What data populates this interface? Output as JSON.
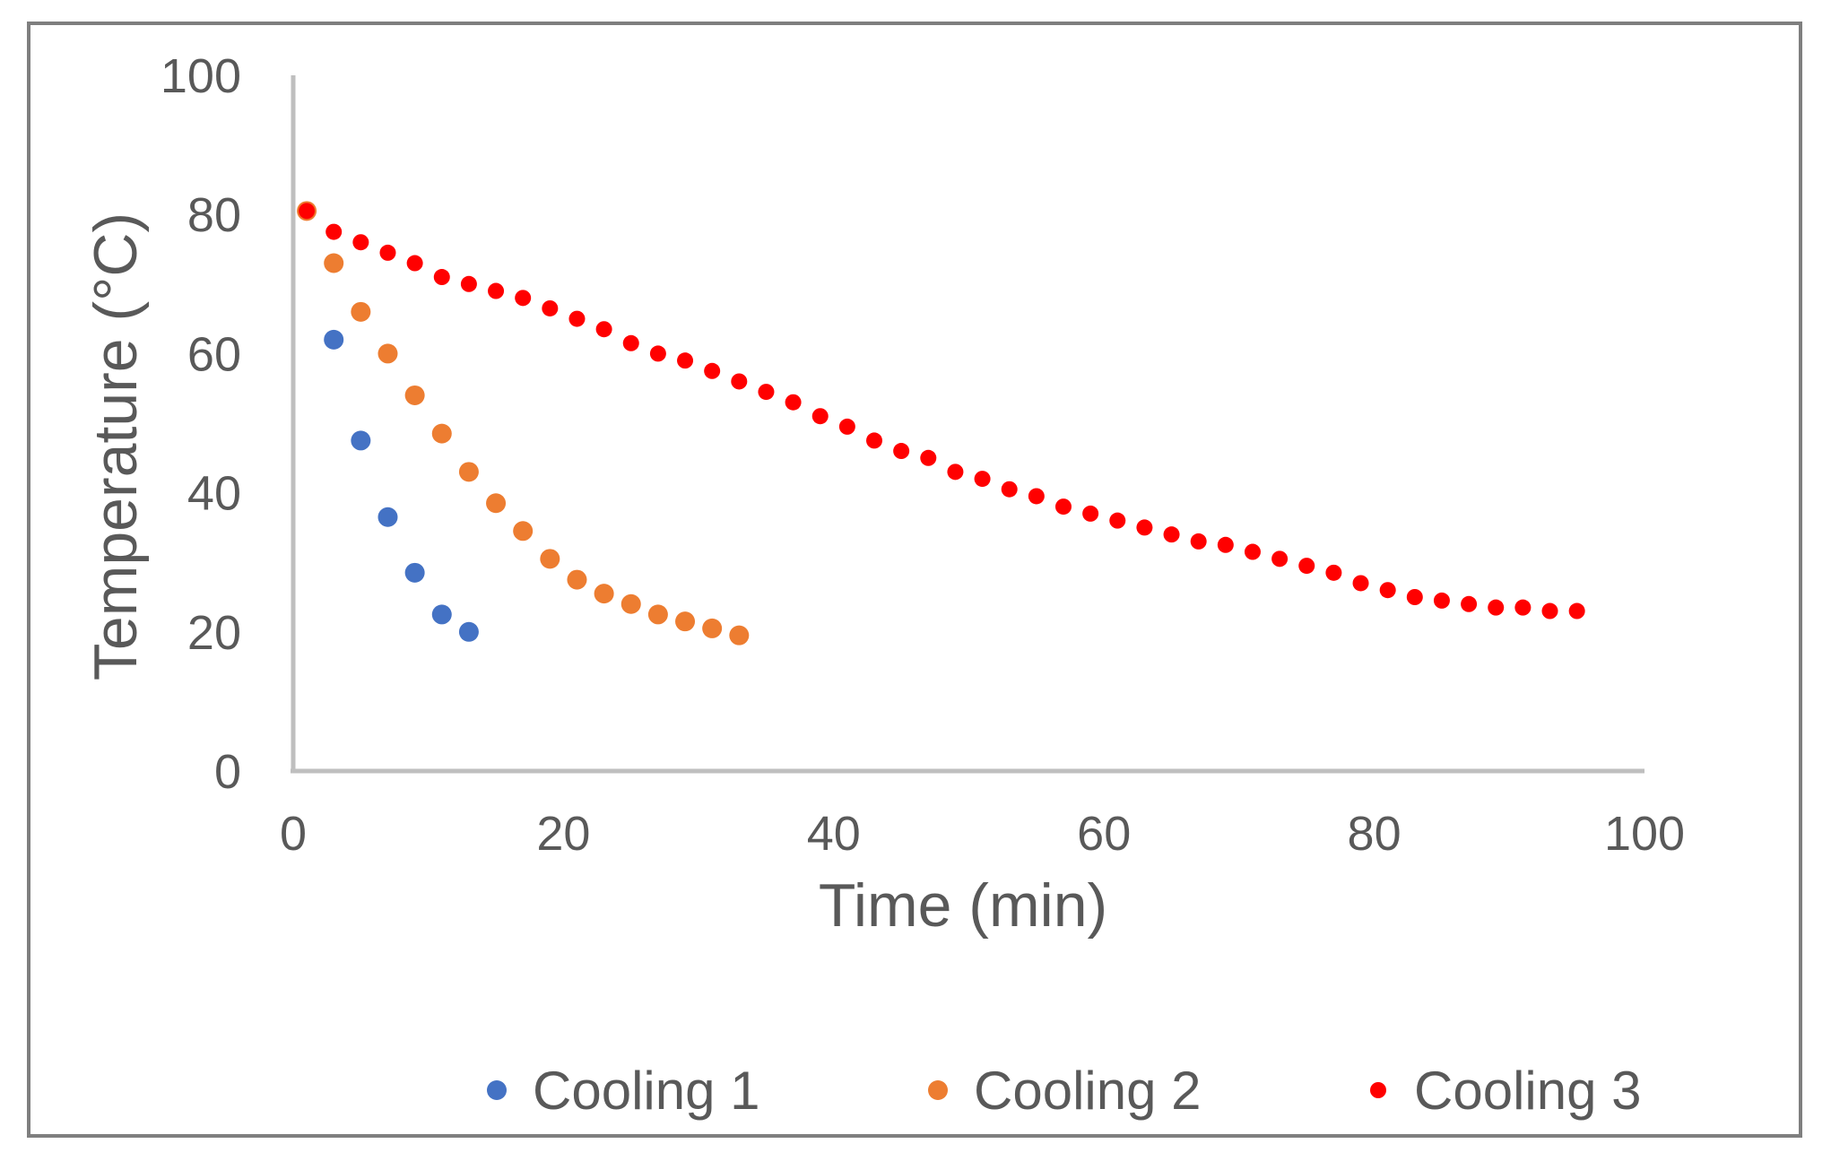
{
  "chart_data": {
    "type": "scatter",
    "title": "",
    "xlabel": "Time (min)",
    "ylabel": "Temperature (°C)",
    "xlim": [
      0,
      100
    ],
    "ylim": [
      0,
      100
    ],
    "x_ticks": [
      "0",
      "20",
      "40",
      "60",
      "80",
      "100"
    ],
    "y_ticks": [
      "0",
      "20",
      "40",
      "60",
      "80",
      "100"
    ],
    "grid": false,
    "legend_position": "bottom",
    "series": [
      {
        "name": "Cooling 1",
        "color": "#4472c4",
        "x": [
          3,
          5,
          7,
          9,
          11,
          13
        ],
        "y": [
          62,
          47.5,
          36.5,
          28.5,
          22.5,
          20
        ]
      },
      {
        "name": "Cooling 2",
        "color": "#ed7d31",
        "x": [
          1,
          3,
          5,
          7,
          9,
          11,
          13,
          15,
          17,
          19,
          21,
          23,
          25,
          27,
          29,
          31,
          33
        ],
        "y": [
          80.5,
          73,
          66,
          60,
          54,
          48.5,
          43,
          38.5,
          34.5,
          30.5,
          27.5,
          25.5,
          24,
          22.5,
          21.5,
          20.5,
          19.5
        ]
      },
      {
        "name": "Cooling 3",
        "color": "#ff0000",
        "x": [
          1,
          3,
          5,
          7,
          9,
          11,
          13,
          15,
          17,
          19,
          21,
          23,
          25,
          27,
          29,
          31,
          33,
          35,
          37,
          39,
          41,
          43,
          45,
          47,
          49,
          51,
          53,
          55,
          57,
          59,
          61,
          63,
          65,
          67,
          69,
          71,
          73,
          75,
          77,
          79,
          81,
          83,
          85,
          87,
          89,
          91,
          93,
          95
        ],
        "y": [
          80.5,
          77.5,
          76,
          74.5,
          73,
          71,
          70,
          69,
          68,
          66.5,
          65,
          63.5,
          61.5,
          60,
          59,
          57.5,
          56,
          54.5,
          53,
          51,
          49.5,
          47.5,
          46,
          45,
          43,
          42,
          40.5,
          39.5,
          38,
          37,
          36,
          35,
          34,
          33,
          32.5,
          31.5,
          30.5,
          29.5,
          28.5,
          27,
          26,
          25,
          24.5,
          24,
          23.5,
          23.5,
          23,
          23
        ]
      }
    ]
  }
}
